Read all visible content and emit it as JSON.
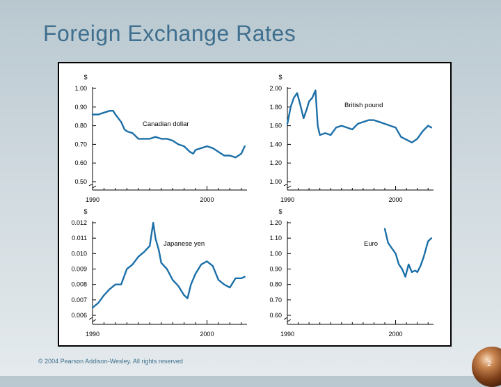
{
  "slide": {
    "title": "Foreign Exchange Rates",
    "copyright": "© 2004 Pearson Addison-Wesley. All rights reserved",
    "page_number": "2"
  },
  "colors": {
    "line": "#1b6fa8",
    "title": "#3f6f8e"
  },
  "chart_data": [
    {
      "type": "line",
      "title": "Canadian dollar",
      "ylabel": "$",
      "xlim": [
        1990,
        2003.5
      ],
      "ylim": [
        0.5,
        1.0
      ],
      "xticks": [
        "1990",
        "2000"
      ],
      "yticks": [
        "1.00",
        "0.90",
        "0.80",
        "0.70",
        "0.60",
        "0.50"
      ],
      "series": [
        {
          "name": "Canadian dollar",
          "x": [
            1990,
            1990.5,
            1991,
            1991.5,
            1991.8,
            1992,
            1992.5,
            1992.8,
            1993,
            1993.5,
            1994,
            1994.5,
            1995,
            1995.5,
            1996,
            1996.5,
            1997,
            1997.5,
            1998,
            1998.5,
            1998.8,
            1999,
            1999.5,
            2000,
            2000.5,
            2001,
            2001.5,
            2002,
            2002.5,
            2003,
            2003.3
          ],
          "y": [
            0.86,
            0.86,
            0.87,
            0.88,
            0.88,
            0.86,
            0.82,
            0.78,
            0.77,
            0.76,
            0.73,
            0.73,
            0.73,
            0.74,
            0.73,
            0.73,
            0.72,
            0.7,
            0.69,
            0.66,
            0.65,
            0.67,
            0.68,
            0.69,
            0.68,
            0.66,
            0.64,
            0.64,
            0.63,
            0.65,
            0.69
          ]
        }
      ]
    },
    {
      "type": "line",
      "title": "British pound",
      "ylabel": "$",
      "xlim": [
        1990,
        2003.5
      ],
      "ylim": [
        1.0,
        2.0
      ],
      "xticks": [
        "1990",
        "2000"
      ],
      "yticks": [
        "2.00",
        "1.80",
        "1.60",
        "1.40",
        "1.20",
        "1.00"
      ],
      "series": [
        {
          "name": "British pound",
          "x": [
            1990,
            1990.3,
            1990.6,
            1990.9,
            1991.2,
            1991.5,
            1991.8,
            1992,
            1992.3,
            1992.6,
            1992.8,
            1993,
            1993.5,
            1994,
            1994.5,
            1995,
            1995.5,
            1996,
            1996.5,
            1997,
            1997.5,
            1998,
            1998.5,
            1999,
            1999.5,
            2000,
            2000.5,
            2001,
            2001.5,
            2002,
            2002.5,
            2003,
            2003.3
          ],
          "y": [
            1.62,
            1.8,
            1.9,
            1.95,
            1.82,
            1.68,
            1.78,
            1.86,
            1.9,
            1.98,
            1.6,
            1.5,
            1.52,
            1.5,
            1.58,
            1.6,
            1.58,
            1.56,
            1.62,
            1.64,
            1.66,
            1.66,
            1.64,
            1.62,
            1.6,
            1.58,
            1.48,
            1.45,
            1.42,
            1.46,
            1.54,
            1.6,
            1.58
          ]
        }
      ]
    },
    {
      "type": "line",
      "title": "Japanese yen",
      "ylabel": "$",
      "xlim": [
        1990,
        2003.5
      ],
      "ylim": [
        0.006,
        0.012
      ],
      "xticks": [
        "1990",
        "2000"
      ],
      "yticks": [
        "0.012",
        "0.011",
        "0.010",
        "0.009",
        "0.008",
        "0.007",
        "0.006"
      ],
      "series": [
        {
          "name": "Japanese yen",
          "x": [
            1990,
            1990.5,
            1991,
            1991.5,
            1992,
            1992.5,
            1993,
            1993.5,
            1994,
            1994.5,
            1995,
            1995.3,
            1995.5,
            1995.8,
            1996,
            1996.5,
            1997,
            1997.5,
            1998,
            1998.3,
            1998.6,
            1999,
            1999.5,
            2000,
            2000.5,
            2001,
            2001.5,
            2002,
            2002.5,
            2003,
            2003.3
          ],
          "y": [
            0.0065,
            0.0068,
            0.0073,
            0.0077,
            0.008,
            0.008,
            0.009,
            0.0093,
            0.0098,
            0.0101,
            0.0105,
            0.012,
            0.011,
            0.0102,
            0.0094,
            0.009,
            0.0083,
            0.0079,
            0.0073,
            0.0071,
            0.008,
            0.0087,
            0.0093,
            0.0095,
            0.0092,
            0.0083,
            0.008,
            0.0078,
            0.0084,
            0.0084,
            0.0085
          ]
        }
      ]
    },
    {
      "type": "line",
      "title": "Euro",
      "ylabel": "$",
      "xlim": [
        1990,
        2003.5
      ],
      "ylim": [
        0.6,
        1.2
      ],
      "xticks": [
        "1990",
        "2000"
      ],
      "yticks": [
        "1.20",
        "1.10",
        "1.00",
        "0.90",
        "0.80",
        "0.70",
        "0.60"
      ],
      "series": [
        {
          "name": "Euro",
          "x": [
            1999,
            1999.3,
            1999.6,
            2000,
            2000.3,
            2000.6,
            2000.9,
            2001.2,
            2001.5,
            2001.8,
            2002,
            2002.3,
            2002.6,
            2003,
            2003.3
          ],
          "y": [
            1.16,
            1.07,
            1.04,
            1.0,
            0.93,
            0.9,
            0.85,
            0.93,
            0.88,
            0.89,
            0.88,
            0.92,
            0.98,
            1.08,
            1.1
          ]
        }
      ]
    }
  ]
}
